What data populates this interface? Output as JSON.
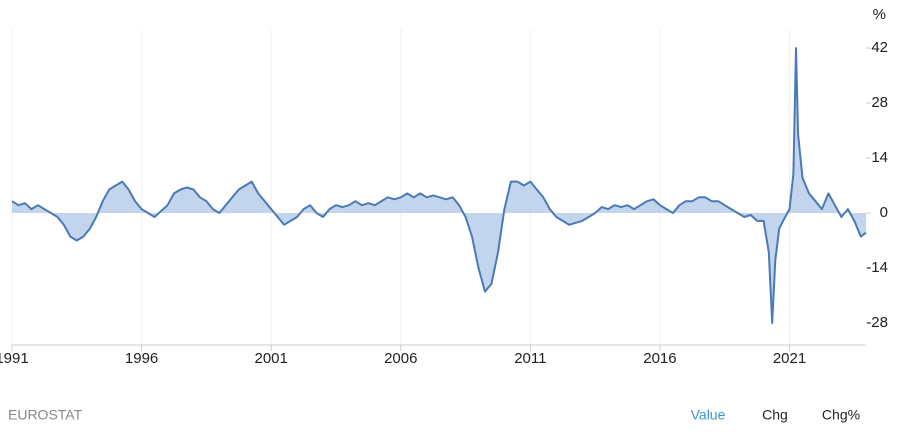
{
  "chart_data": {
    "type": "area",
    "ylabel": "%",
    "color": "#4a7ab5",
    "fill": "#b9cdea",
    "grid": true,
    "xlim": [
      1991,
      2023.95
    ],
    "xticks": [
      1991,
      1996,
      2001,
      2006,
      2011,
      2016,
      2021
    ],
    "ylim": [
      -33.6,
      46.6
    ],
    "yticks": [
      -28,
      -14,
      0,
      14,
      28,
      42
    ],
    "x": [
      1991,
      1991.25,
      1991.5,
      1991.75,
      1992,
      1992.25,
      1992.5,
      1992.75,
      1993,
      1993.25,
      1993.5,
      1993.75,
      1994,
      1994.25,
      1994.5,
      1994.75,
      1995,
      1995.25,
      1995.5,
      1995.75,
      1996,
      1996.25,
      1996.5,
      1996.75,
      1997,
      1997.25,
      1997.5,
      1997.75,
      1998,
      1998.25,
      1998.5,
      1998.75,
      1999,
      1999.25,
      1999.5,
      1999.75,
      2000,
      2000.25,
      2000.5,
      2000.75,
      2001,
      2001.25,
      2001.5,
      2001.75,
      2002,
      2002.25,
      2002.5,
      2002.75,
      2003,
      2003.25,
      2003.5,
      2003.75,
      2004,
      2004.25,
      2004.5,
      2004.75,
      2005,
      2005.25,
      2005.5,
      2005.75,
      2006,
      2006.25,
      2006.5,
      2006.75,
      2007,
      2007.25,
      2007.5,
      2007.75,
      2008,
      2008.25,
      2008.5,
      2008.75,
      2009,
      2009.25,
      2009.5,
      2009.75,
      2010,
      2010.25,
      2010.5,
      2010.75,
      2011,
      2011.25,
      2011.5,
      2011.75,
      2012,
      2012.25,
      2012.5,
      2012.75,
      2013,
      2013.25,
      2013.5,
      2013.75,
      2014,
      2014.25,
      2014.5,
      2014.75,
      2015,
      2015.25,
      2015.5,
      2015.75,
      2016,
      2016.25,
      2016.5,
      2016.75,
      2017,
      2017.25,
      2017.5,
      2017.75,
      2018,
      2018.25,
      2018.5,
      2018.75,
      2019,
      2019.25,
      2019.5,
      2019.75,
      2020,
      2020.2,
      2020.33,
      2020.45,
      2020.6,
      2020.75,
      2021,
      2021.15,
      2021.25,
      2021.33,
      2021.5,
      2021.75,
      2022,
      2022.25,
      2022.5,
      2022.75,
      2023,
      2023.25,
      2023.5,
      2023.75,
      2023.95
    ],
    "values": [
      3,
      2,
      2.5,
      1,
      2,
      1,
      0,
      -1,
      -3,
      -6,
      -7,
      -6,
      -4,
      -1,
      3,
      6,
      7,
      8,
      6,
      3,
      1,
      0,
      -1,
      0.5,
      2,
      5,
      6,
      6.5,
      6,
      4,
      3,
      1,
      0,
      2,
      4,
      6,
      7,
      8,
      5,
      3,
      1,
      -1,
      -3,
      -2,
      -1,
      1,
      2,
      0,
      -1,
      1,
      2,
      1.5,
      2,
      3,
      2,
      2.5,
      2,
      3,
      4,
      3.5,
      4,
      5,
      4,
      5,
      4,
      4.5,
      4,
      3.5,
      4,
      2,
      -1,
      -6,
      -14,
      -20,
      -18,
      -10,
      1,
      8,
      8,
      7,
      8,
      6,
      4,
      1,
      -1,
      -2,
      -3,
      -2.5,
      -2,
      -1,
      0,
      1.5,
      1,
      2,
      1.5,
      2,
      1,
      2,
      3,
      3.5,
      2,
      1,
      0,
      2,
      3,
      3,
      4,
      4,
      3,
      3,
      2,
      1,
      0,
      -1,
      -0.5,
      -2,
      -2,
      -10,
      -28,
      -12,
      -4,
      -2,
      1,
      10,
      42,
      20,
      9,
      5,
      3,
      1,
      5,
      2,
      -1,
      1,
      -2,
      -6,
      -5
    ]
  },
  "footer": {
    "source": "EUROSTAT",
    "tabs": [
      "Value",
      "Chg",
      "Chg%"
    ]
  }
}
